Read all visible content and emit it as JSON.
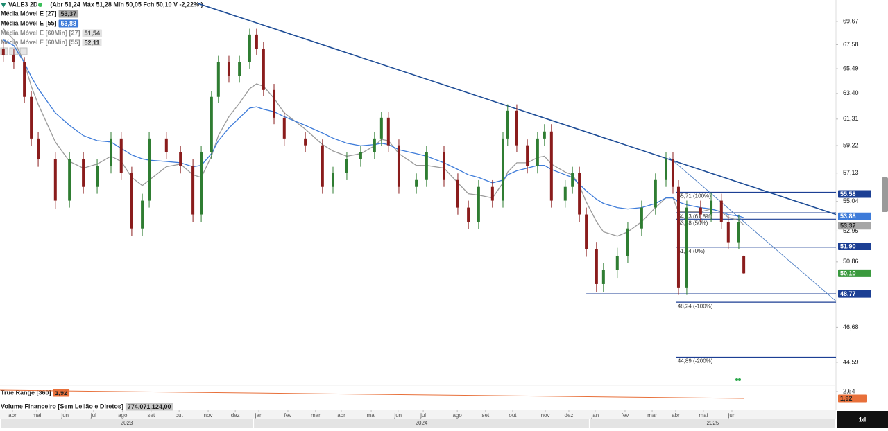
{
  "header": {
    "symbol": "VALE3 2D",
    "quote": "(Abr 51,24 Máx 51,28 Mín 50,05 Fch 50,10 V -2,22% )"
  },
  "indicators": [
    {
      "name": "Média Móvel E [60Min] [27]",
      "value": "51,54"
    },
    {
      "name": "Média Móvel E [60Min] [55]",
      "value": "52,11"
    }
  ],
  "chart_data": {
    "type": "candlestick",
    "log_scale": true,
    "grid": false,
    "xlim": [
      -0.45,
      29.75
    ],
    "ylim": [
      43.31,
      71.65
    ],
    "yticks": [
      {
        "value": 69.67,
        "label": "69,67"
      },
      {
        "value": 67.58,
        "label": "67,58"
      },
      {
        "value": 65.49,
        "label": "65,49"
      },
      {
        "value": 63.4,
        "label": "63,40"
      },
      {
        "value": 61.31,
        "label": "61,31"
      },
      {
        "value": 59.22,
        "label": "59,22"
      },
      {
        "value": 57.13,
        "label": "57,13"
      },
      {
        "value": 55.04,
        "label": "55,04"
      },
      {
        "value": 52.95,
        "label": "52,95"
      },
      {
        "value": 50.86,
        "label": "50,86"
      },
      {
        "value": 46.68,
        "label": "46,68"
      },
      {
        "value": 44.59,
        "label": "44,59"
      }
    ],
    "xticks": [
      {
        "value": 0,
        "label": "abr"
      },
      {
        "value": 0.88,
        "label": "mai"
      },
      {
        "value": 1.9,
        "label": "jun"
      },
      {
        "value": 2.93,
        "label": "jul"
      },
      {
        "value": 3.98,
        "label": "ago"
      },
      {
        "value": 5.01,
        "label": "set"
      },
      {
        "value": 6.02,
        "label": "out"
      },
      {
        "value": 7.07,
        "label": "nov"
      },
      {
        "value": 8.05,
        "label": "dez"
      },
      {
        "value": 8.9,
        "label": "jan"
      },
      {
        "value": 9.95,
        "label": "fev"
      },
      {
        "value": 10.95,
        "label": "mar"
      },
      {
        "value": 11.88,
        "label": "abr"
      },
      {
        "value": 12.96,
        "label": "mai"
      },
      {
        "value": 13.93,
        "label": "jun"
      },
      {
        "value": 14.84,
        "label": "jul"
      },
      {
        "value": 16.07,
        "label": "ago"
      },
      {
        "value": 17.09,
        "label": "set"
      },
      {
        "value": 18.07,
        "label": "out"
      },
      {
        "value": 19.25,
        "label": "nov"
      },
      {
        "value": 20.1,
        "label": "dez"
      },
      {
        "value": 21.05,
        "label": "jan"
      },
      {
        "value": 22.13,
        "label": "fev"
      },
      {
        "value": 23.11,
        "label": "mar"
      },
      {
        "value": 23.96,
        "label": "abr"
      },
      {
        "value": 24.96,
        "label": "mai"
      },
      {
        "value": 25.99,
        "label": "jun"
      }
    ],
    "years": [
      {
        "start": -0.45,
        "end": 8.7,
        "label": "2023"
      },
      {
        "start": 8.7,
        "end": 20.85,
        "label": "2024"
      },
      {
        "start": 20.85,
        "end": 29.75,
        "label": "2025"
      }
    ],
    "up_color": "#2f7d32",
    "down_color": "#8a1c1c",
    "x": [
      -0.33,
      0.05,
      0.43,
      0.68,
      0.93,
      1.55,
      2.06,
      2.56,
      3.06,
      3.56,
      3.93,
      4.31,
      4.69,
      4.94,
      5.56,
      6.07,
      6.52,
      6.82,
      7.19,
      7.44,
      7.82,
      8.2,
      8.57,
      8.82,
      9.07,
      9.45,
      9.82,
      10.58,
      11.2,
      11.58,
      12.08,
      12.58,
      13.08,
      13.33,
      13.58,
      13.96,
      14.59,
      14.96,
      15.59,
      16.09,
      16.47,
      16.84,
      17.34,
      17.72,
      17.89,
      18.22,
      18.6,
      18.97,
      19.22,
      19.47,
      19.97,
      20.23,
      20.48,
      20.73,
      21.1,
      21.35,
      21.85,
      22.23,
      22.73,
      23.23,
      23.61,
      23.86,
      24.06,
      24.36,
      24.86,
      25.24,
      25.61,
      25.86,
      26.24,
      26.42
    ],
    "open": [
      67.24,
      66.64,
      66.04,
      63.12,
      59.77,
      58.17,
      55.1,
      58.17,
      56.1,
      57.65,
      59.77,
      57.13,
      53.13,
      55.1,
      59.77,
      58.7,
      57.65,
      54.11,
      58.7,
      63.12,
      66.04,
      64.85,
      66.04,
      68.48,
      67.24,
      63.69,
      61.42,
      59.77,
      59.24,
      56.1,
      57.13,
      58.17,
      58.7,
      59.77,
      61.42,
      59.24,
      56.1,
      56.61,
      58.7,
      56.61,
      54.6,
      53.6,
      56.1,
      55.1,
      59.77,
      61.98,
      59.24,
      57.65,
      59.77,
      60.32,
      55.1,
      56.1,
      57.13,
      54.11,
      51.71,
      49.4,
      50.32,
      51.25,
      53.13,
      54.6,
      56.61,
      58.17,
      56.1,
      49.18,
      54.6,
      54.11,
      55.1,
      53.6,
      52.18,
      51.24
    ],
    "high": [
      67.8,
      67.2,
      66.5,
      63.6,
      60.3,
      58.7,
      58.7,
      58.7,
      58.2,
      60.3,
      60.3,
      57.6,
      55.6,
      60.3,
      60.3,
      59.2,
      58.2,
      59.2,
      63.6,
      66.6,
      66.6,
      66.6,
      69.0,
      69.0,
      67.8,
      64.2,
      61.9,
      60.3,
      59.7,
      57.6,
      58.7,
      59.2,
      60.3,
      61.9,
      61.9,
      59.7,
      57.1,
      59.2,
      59.2,
      57.1,
      55.1,
      56.6,
      56.6,
      60.3,
      62.5,
      62.5,
      59.7,
      60.3,
      60.9,
      60.9,
      56.6,
      57.6,
      57.6,
      54.6,
      52.2,
      50.8,
      51.8,
      53.6,
      55.1,
      57.1,
      58.7,
      58.7,
      56.6,
      55.1,
      55.1,
      55.7,
      55.6,
      54.1,
      54.1,
      51.28
    ],
    "low": [
      66.1,
      65.5,
      62.6,
      59.2,
      57.6,
      54.5,
      54.6,
      55.6,
      55.6,
      57.1,
      56.6,
      52.6,
      52.6,
      54.6,
      58.2,
      57.1,
      53.6,
      53.6,
      58.2,
      62.6,
      64.3,
      64.3,
      65.5,
      66.7,
      63.2,
      60.9,
      59.2,
      58.7,
      55.6,
      55.6,
      56.6,
      57.6,
      58.2,
      59.2,
      58.7,
      55.6,
      55.6,
      56.1,
      56.1,
      54.1,
      53.1,
      53.1,
      54.6,
      54.6,
      59.2,
      58.7,
      57.1,
      57.1,
      59.2,
      54.6,
      54.6,
      55.6,
      53.6,
      51.2,
      48.9,
      48.9,
      49.8,
      50.8,
      52.6,
      54.1,
      56.1,
      55.6,
      48.7,
      48.7,
      53.6,
      53.6,
      53.1,
      51.7,
      51.7,
      50.05
    ],
    "close": [
      66.64,
      66.04,
      63.12,
      59.77,
      58.17,
      55.1,
      58.17,
      56.1,
      57.65,
      59.77,
      57.13,
      53.13,
      55.1,
      59.77,
      58.7,
      57.65,
      54.11,
      58.7,
      63.12,
      66.04,
      64.85,
      66.04,
      68.48,
      67.24,
      63.69,
      61.42,
      59.77,
      59.24,
      56.1,
      57.13,
      58.17,
      58.7,
      59.77,
      61.42,
      59.24,
      56.1,
      56.61,
      58.7,
      56.61,
      54.6,
      53.6,
      56.1,
      55.1,
      59.77,
      61.98,
      59.24,
      57.65,
      59.77,
      60.32,
      55.1,
      56.1,
      57.13,
      54.11,
      51.71,
      49.4,
      50.32,
      51.25,
      53.13,
      54.6,
      56.61,
      58.17,
      56.1,
      49.18,
      54.6,
      54.11,
      55.1,
      53.6,
      52.18,
      53.6,
      50.1
    ],
    "price_badge": {
      "value": 50.1,
      "label": "50,10",
      "color": "#3a9a3e"
    },
    "series": [
      {
        "name": "Média Móvel E [27]",
        "last_label": "53,37",
        "color": "#9a9a9a",
        "badge_color": "#a6a6a6",
        "values": [
          69.0,
          68.0,
          66.0,
          64.0,
          62.5,
          59.5,
          58.0,
          57.5,
          57.8,
          58.4,
          58.0,
          56.8,
          56.2,
          56.6,
          57.6,
          57.8,
          57.0,
          56.8,
          58.4,
          60.0,
          61.5,
          62.6,
          63.8,
          64.2,
          64.0,
          63.0,
          61.8,
          60.5,
          59.3,
          58.8,
          58.4,
          58.6,
          59.2,
          59.7,
          59.6,
          58.6,
          57.7,
          57.7,
          57.5,
          56.4,
          55.6,
          55.5,
          55.3,
          56.4,
          57.2,
          57.9,
          57.9,
          58.3,
          58.4,
          57.8,
          57.2,
          57.0,
          56.2,
          55.0,
          53.6,
          52.9,
          52.6,
          52.9,
          53.6,
          54.6,
          55.3,
          55.3,
          54.3,
          54.3,
          54.3,
          54.5,
          54.3,
          53.9,
          53.7,
          53.37
        ]
      },
      {
        "name": "Média Móvel E [55]",
        "last_label": "53,88",
        "color": "#3d7bd9",
        "badge_color": "#3d7bd9",
        "values": [
          68.0,
          67.5,
          66.0,
          64.8,
          63.8,
          61.8,
          60.8,
          60.0,
          59.6,
          59.5,
          59.0,
          58.5,
          58.2,
          58.1,
          58.0,
          57.9,
          57.6,
          57.7,
          58.6,
          59.6,
          60.6,
          61.4,
          62.2,
          62.3,
          62.1,
          61.9,
          61.5,
          60.8,
          60.2,
          59.8,
          59.4,
          59.2,
          59.3,
          59.4,
          59.3,
          58.9,
          58.6,
          58.4,
          57.9,
          57.4,
          57.0,
          56.8,
          56.4,
          56.6,
          57.0,
          57.3,
          57.5,
          57.7,
          57.7,
          57.4,
          57.0,
          56.8,
          56.3,
          55.8,
          55.2,
          54.9,
          54.6,
          54.5,
          54.6,
          54.9,
          55.3,
          55.3,
          55.0,
          54.8,
          54.6,
          54.5,
          54.3,
          54.1,
          54.0,
          53.88
        ]
      }
    ],
    "trendlines": [
      {
        "x": [
          6.69,
          29.75
        ],
        "y": [
          71.33,
          54.11
        ],
        "color": "#1d4c96",
        "width": 1.6
      },
      {
        "x": [
          23.74,
          29.75
        ],
        "y": [
          58.28,
          48.31
        ],
        "color": "#4f7fc4",
        "width": 0.9
      }
    ],
    "levels": [
      {
        "value": 55.58,
        "label": "55,58",
        "color": "#1c3f94"
      },
      {
        "value": 51.9,
        "label": "51,90",
        "color": "#1c3f94"
      },
      {
        "value": 48.77,
        "label": "48,77",
        "color": "#1c3f94",
        "line_from": 20.73
      }
    ],
    "fib_start": 23.98,
    "fib_levels": [
      {
        "value": 55.71,
        "label": "55,71 (100%)"
      },
      {
        "value": 54.23,
        "label": "54,23 (61,8%)"
      },
      {
        "value": 53.78,
        "label": "53,78 (50%)"
      },
      {
        "value": 51.84,
        "label": "51,84 (0%)"
      },
      {
        "value": 48.24,
        "label": "48,24 (-100%)"
      },
      {
        "value": 44.89,
        "label": "44,89 (-200%)"
      }
    ]
  },
  "true_range": {
    "label": "True Range [360]",
    "value_label": "1,92",
    "color": "#e8703a",
    "ylim": [
      1.56,
      3.36
    ],
    "yticks": [
      {
        "value": 2.64,
        "label": "2,64"
      }
    ],
    "x": [
      -0.45,
      26.42
    ],
    "values": [
      2.78,
      1.92
    ]
  },
  "volume": {
    "label": "Volume Financeiro [Sem Leilão e Diretos]",
    "value": "774.071.124,00"
  },
  "timeframe": "1d"
}
